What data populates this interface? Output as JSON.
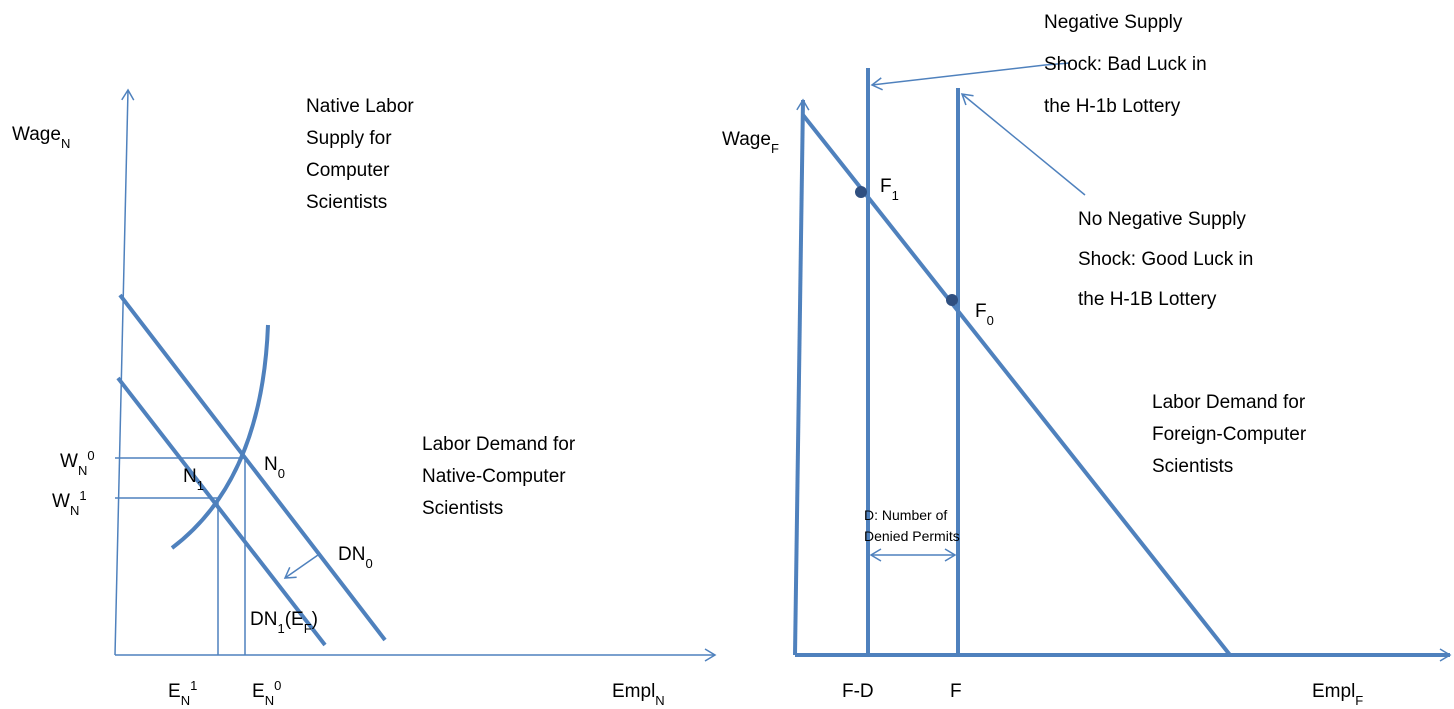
{
  "left": {
    "y_axis": {
      "text": "Wage",
      "sub": "N"
    },
    "x_axis": {
      "text": "Empl",
      "sub": "N"
    },
    "supply_label": [
      "Native Labor",
      "Supply for",
      "Computer",
      "Scientists"
    ],
    "demand_label": [
      "Labor Demand for",
      "Native-Computer",
      "Scientists"
    ],
    "w0": {
      "text": "W",
      "sub": "N",
      "sup": "0"
    },
    "w1": {
      "text": "W",
      "sub": "N",
      "sup": "1"
    },
    "e1": {
      "text": "E",
      "sub": "N",
      "sup": "1"
    },
    "e0": {
      "text": "E",
      "sub": "N",
      "sup": "0"
    },
    "n0": {
      "text": "N",
      "sub": "0"
    },
    "n1": {
      "text": "N",
      "sub": "1"
    },
    "dn0": {
      "text": "DN",
      "sub": "0"
    },
    "dn1": {
      "text": "DN",
      "sub": "1",
      "text2": "(E",
      "sub2": "F",
      "text3": ")"
    }
  },
  "right": {
    "y_axis": {
      "text": "Wage",
      "sub": "F"
    },
    "x_axis": {
      "text": "Empl",
      "sub": "F"
    },
    "shock_label": [
      "Negative Supply",
      "Shock: Bad Luck in",
      "the H-1b Lottery"
    ],
    "no_shock_label": [
      "No Negative Supply",
      "Shock: Good Luck in",
      "the H-1B Lottery"
    ],
    "f1": {
      "text": "F",
      "sub": "1"
    },
    "f0": {
      "text": "F",
      "sub": "0"
    },
    "demand_label": [
      "Labor Demand for",
      "Foreign-Computer",
      "Scientists"
    ],
    "denied_label": [
      "D: Number of",
      "Denied Permits"
    ],
    "fd": "F-D",
    "f": "F"
  }
}
